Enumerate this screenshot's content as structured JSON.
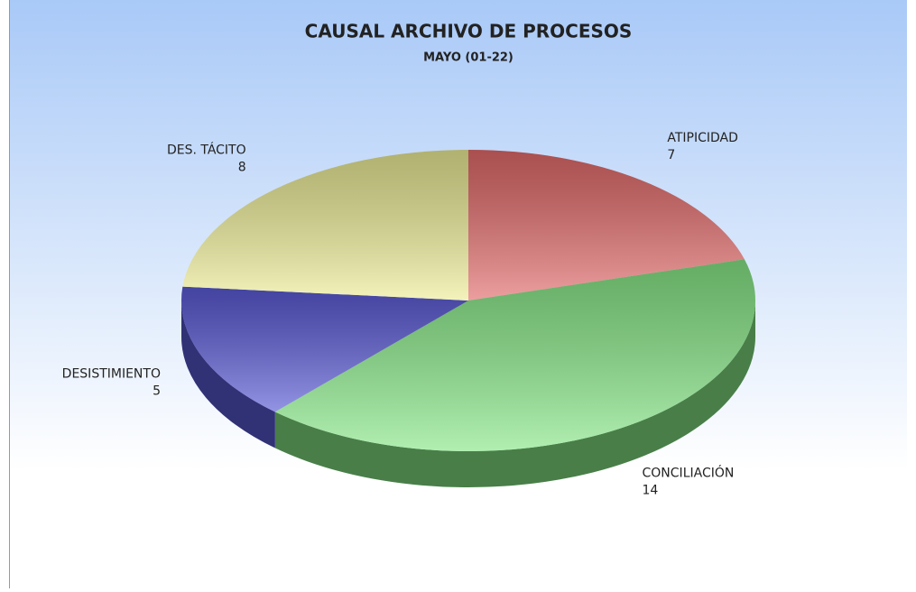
{
  "chart_data": {
    "type": "pie",
    "title": "CAUSAL ARCHIVO DE PROCESOS",
    "subtitle": "MAYO (01-22)",
    "categories": [
      "ATIPICIDAD",
      "CONCILIACIÓN",
      "DESISTIMIENTO",
      "DES. TÁCITO"
    ],
    "values": [
      7,
      14,
      5,
      8
    ],
    "colors": [
      "#e26a6a",
      "#86e686",
      "#5a5ad6",
      "#ecec96"
    ]
  }
}
